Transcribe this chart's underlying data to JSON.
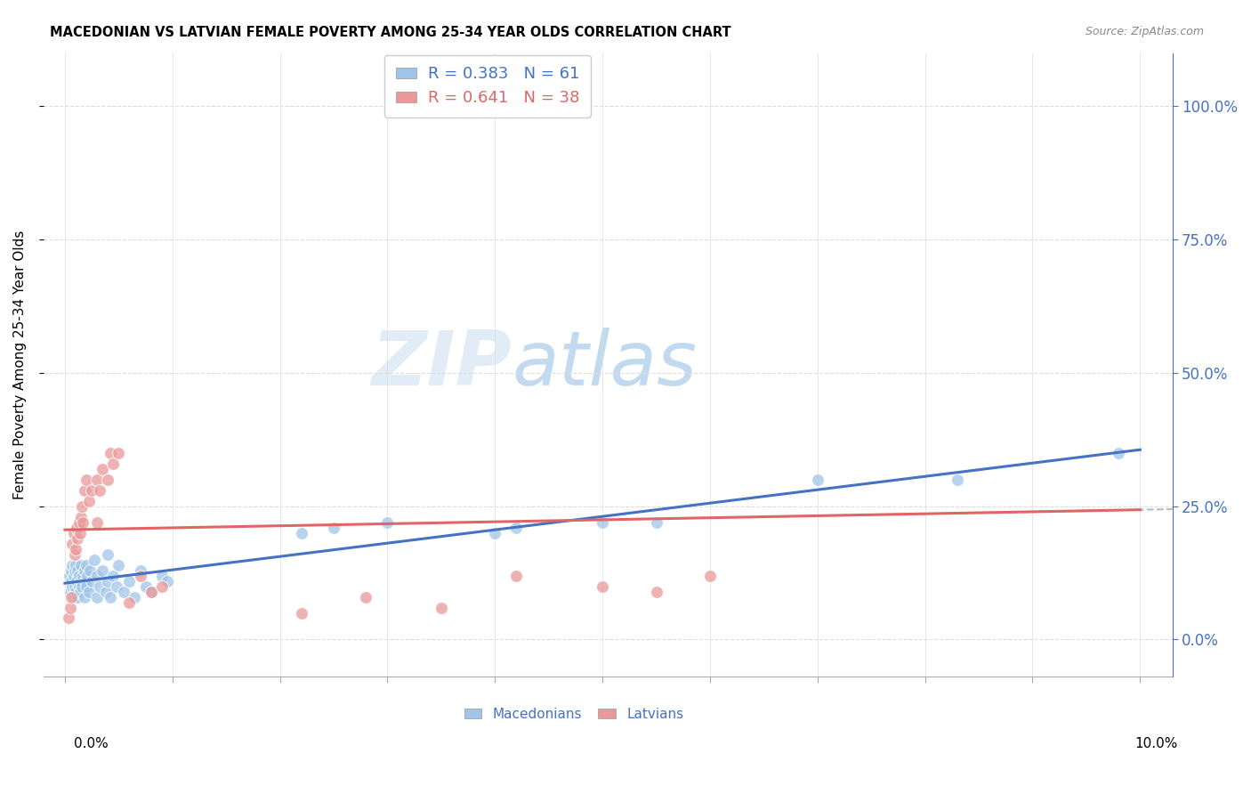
{
  "title": "MACEDONIAN VS LATVIAN FEMALE POVERTY AMONG 25-34 YEAR OLDS CORRELATION CHART",
  "source": "Source: ZipAtlas.com",
  "ylabel": "Female Poverty Among 25-34 Year Olds",
  "watermark_zip": "ZIP",
  "watermark_atlas": "atlas",
  "mac_r": "0.383",
  "mac_n": "61",
  "lat_r": "0.641",
  "lat_n": "38",
  "mac_dot_color": "#9fc5e8",
  "lat_dot_color": "#ea9999",
  "mac_line_color": "#4472c4",
  "lat_line_color": "#e06666",
  "right_tick_color": "#4472c4",
  "background_color": "#ffffff",
  "ytick_values": [
    0.0,
    0.25,
    0.5,
    0.75,
    1.0
  ],
  "ytick_labels": [
    "0.0%",
    "25.0%",
    "50.0%",
    "75.0%",
    "100.0%"
  ],
  "mac_x": [
    0.0004,
    0.0005,
    0.0006,
    0.0006,
    0.0007,
    0.0007,
    0.0008,
    0.0008,
    0.0009,
    0.0009,
    0.001,
    0.001,
    0.0011,
    0.0012,
    0.0012,
    0.0013,
    0.0013,
    0.0014,
    0.0015,
    0.0015,
    0.0016,
    0.0017,
    0.0018,
    0.0018,
    0.0019,
    0.002,
    0.002,
    0.0021,
    0.0022,
    0.0023,
    0.0025,
    0.0027,
    0.003,
    0.003,
    0.0032,
    0.0035,
    0.0038,
    0.004,
    0.004,
    0.0042,
    0.0045,
    0.0048,
    0.005,
    0.0055,
    0.006,
    0.0065,
    0.007,
    0.0075,
    0.008,
    0.009,
    0.0095,
    0.022,
    0.025,
    0.03,
    0.04,
    0.042,
    0.05,
    0.055,
    0.07,
    0.083,
    0.098
  ],
  "mac_y": [
    0.12,
    0.09,
    0.11,
    0.13,
    0.1,
    0.14,
    0.08,
    0.12,
    0.1,
    0.13,
    0.09,
    0.14,
    0.11,
    0.08,
    0.13,
    0.1,
    0.12,
    0.09,
    0.11,
    0.14,
    0.1,
    0.12,
    0.08,
    0.13,
    0.11,
    0.1,
    0.14,
    0.12,
    0.09,
    0.13,
    0.11,
    0.15,
    0.08,
    0.12,
    0.1,
    0.13,
    0.09,
    0.11,
    0.16,
    0.08,
    0.12,
    0.1,
    0.14,
    0.09,
    0.11,
    0.08,
    0.13,
    0.1,
    0.09,
    0.12,
    0.11,
    0.2,
    0.21,
    0.22,
    0.2,
    0.21,
    0.22,
    0.22,
    0.3,
    0.3,
    0.35
  ],
  "lat_x": [
    0.0003,
    0.0005,
    0.0006,
    0.0007,
    0.0008,
    0.0009,
    0.001,
    0.0011,
    0.0012,
    0.0013,
    0.0014,
    0.0015,
    0.0016,
    0.0017,
    0.0018,
    0.002,
    0.0022,
    0.0025,
    0.003,
    0.003,
    0.0032,
    0.0035,
    0.004,
    0.0042,
    0.0045,
    0.005,
    0.006,
    0.007,
    0.008,
    0.009,
    0.022,
    0.028,
    0.035,
    0.042,
    0.05,
    0.055,
    0.06,
    0.048
  ],
  "lat_y": [
    0.04,
    0.06,
    0.08,
    0.18,
    0.2,
    0.16,
    0.17,
    0.21,
    0.19,
    0.22,
    0.2,
    0.23,
    0.25,
    0.22,
    0.28,
    0.3,
    0.26,
    0.28,
    0.3,
    0.22,
    0.28,
    0.32,
    0.3,
    0.35,
    0.33,
    0.35,
    0.07,
    0.12,
    0.09,
    0.1,
    0.05,
    0.08,
    0.06,
    0.12,
    0.1,
    0.09,
    0.12,
    1.0
  ]
}
